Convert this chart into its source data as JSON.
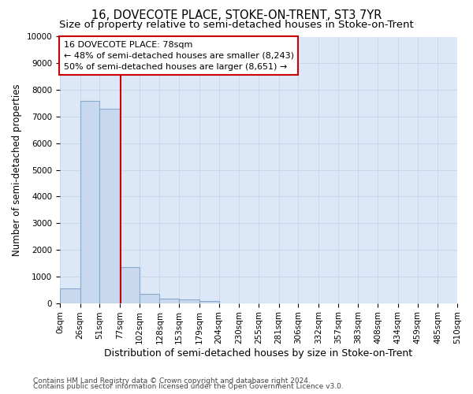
{
  "title": "16, DOVECOTE PLACE, STOKE-ON-TRENT, ST3 7YR",
  "subtitle": "Size of property relative to semi-detached houses in Stoke-on-Trent",
  "xlabel": "Distribution of semi-detached houses by size in Stoke-on-Trent",
  "ylabel": "Number of semi-detached properties",
  "footer_line1": "Contains HM Land Registry data © Crown copyright and database right 2024.",
  "footer_line2": "Contains public sector information licensed under the Open Government Licence v3.0.",
  "bin_edges": [
    0,
    26,
    51,
    77,
    102,
    128,
    153,
    179,
    204,
    230,
    255,
    281,
    306,
    332,
    357,
    383,
    408,
    434,
    459,
    485,
    510
  ],
  "bar_heights": [
    550,
    7600,
    7300,
    1350,
    340,
    175,
    130,
    90,
    0,
    0,
    0,
    0,
    0,
    0,
    0,
    0,
    0,
    0,
    0,
    0
  ],
  "bar_color": "#c8d8ee",
  "bar_edge_color": "#88aacc",
  "property_size": 78,
  "red_line_color": "#cc0000",
  "annotation_line1": "16 DOVECOTE PLACE: 78sqm",
  "annotation_line2": "← 48% of semi-detached houses are smaller (8,243)",
  "annotation_line3": "50% of semi-detached houses are larger (8,651) →",
  "annotation_box_color": "#cc0000",
  "ylim": [
    0,
    10000
  ],
  "yticks": [
    0,
    1000,
    2000,
    3000,
    4000,
    5000,
    6000,
    7000,
    8000,
    9000,
    10000
  ],
  "xtick_labels": [
    "0sqm",
    "26sqm",
    "51sqm",
    "77sqm",
    "102sqm",
    "128sqm",
    "153sqm",
    "179sqm",
    "204sqm",
    "230sqm",
    "255sqm",
    "281sqm",
    "306sqm",
    "332sqm",
    "357sqm",
    "383sqm",
    "408sqm",
    "434sqm",
    "459sqm",
    "485sqm",
    "510sqm"
  ],
  "grid_color": "#c8d4e8",
  "background_color": "#dce8f8",
  "title_fontsize": 10.5,
  "subtitle_fontsize": 9.5,
  "ylabel_fontsize": 8.5,
  "xlabel_fontsize": 9,
  "tick_fontsize": 7.5,
  "annot_fontsize": 8,
  "footer_fontsize": 6.5
}
